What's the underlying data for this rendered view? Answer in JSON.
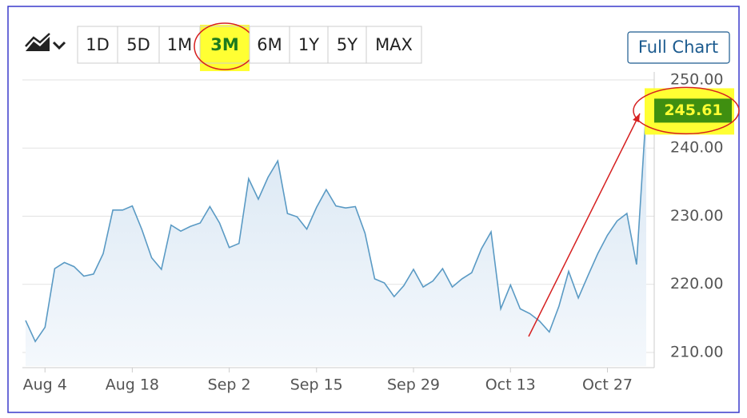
{
  "toolbar": {
    "ranges": [
      "1D",
      "5D",
      "1M",
      "3M",
      "6M",
      "1Y",
      "5Y",
      "MAX"
    ],
    "selected": "3M",
    "full_chart": "Full Chart"
  },
  "chart_data": {
    "type": "area",
    "categories": [
      null,
      null,
      "Aug 4",
      null,
      null,
      null,
      null,
      null,
      null,
      null,
      null,
      "Aug 18",
      null,
      null,
      null,
      null,
      null,
      null,
      null,
      null,
      null,
      "Sep 2",
      null,
      null,
      null,
      null,
      null,
      null,
      null,
      null,
      "Sep 15",
      null,
      null,
      null,
      null,
      null,
      null,
      null,
      null,
      null,
      "Sep 29",
      null,
      null,
      null,
      null,
      null,
      null,
      null,
      null,
      null,
      "Oct 13",
      null,
      null,
      null,
      null,
      null,
      null,
      null,
      null,
      null,
      "Oct 27",
      null,
      null,
      null,
      null
    ],
    "series": [
      {
        "color": "#5a9ac4",
        "values": [
          214.7,
          211.6,
          213.7,
          222.3,
          223.2,
          222.6,
          221.2,
          221.5,
          224.5,
          230.9,
          230.9,
          231.5,
          228,
          223.9,
          222.2,
          228.7,
          227.8,
          228.5,
          229,
          231.4,
          229,
          225.4,
          226,
          235.5,
          232.5,
          235.7,
          238.1,
          230.4,
          229.9,
          228.1,
          231.3,
          233.9,
          231.5,
          231.2,
          231.4,
          227.5,
          220.8,
          220.2,
          218.2,
          219.8,
          222.2,
          219.6,
          220.5,
          222.3,
          219.6,
          220.8,
          221.7,
          225.2,
          227.7,
          216.4,
          219.9,
          216.4,
          215.7,
          214.6,
          213,
          216.8,
          221.9,
          218,
          221.3,
          224.5,
          227.2,
          229.3,
          230.4,
          222.9,
          245.61
        ]
      }
    ],
    "ylim": [
      208,
      250
    ],
    "yticks": [
      {
        "value": 210,
        "label": "210.00"
      },
      {
        "value": 220,
        "label": "220.00"
      },
      {
        "value": 230,
        "label": "230.00"
      },
      {
        "value": 240,
        "label": "240.00"
      },
      {
        "value": 250,
        "label": "250.00"
      }
    ],
    "grid": true
  }
}
